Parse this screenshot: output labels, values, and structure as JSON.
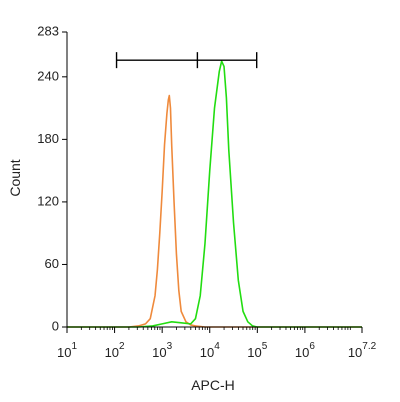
{
  "chart_data": {
    "type": "line",
    "xlabel": "APC-H",
    "ylabel": "Count",
    "x_scale": "log",
    "xlim": [
      10,
      15848932
    ],
    "ylim": [
      0,
      283
    ],
    "x_ticks": [
      {
        "base": "10",
        "exp": "1",
        "value": 10
      },
      {
        "base": "10",
        "exp": "2",
        "value": 100
      },
      {
        "base": "10",
        "exp": "3",
        "value": 1000
      },
      {
        "base": "10",
        "exp": "4",
        "value": 10000
      },
      {
        "base": "10",
        "exp": "5",
        "value": 100000
      },
      {
        "base": "10",
        "exp": "6",
        "value": 1000000
      },
      {
        "base": "10",
        "exp": "7.2",
        "value": 15848932
      }
    ],
    "y_ticks": [
      "0",
      "60",
      "120",
      "180",
      "240",
      "283"
    ],
    "y_tick_values": [
      0,
      60,
      120,
      180,
      240,
      283
    ],
    "series": [
      {
        "color": "#ef8a3c",
        "points": [
          [
            10,
            0
          ],
          [
            100,
            0
          ],
          [
            200,
            0
          ],
          [
            316,
            1
          ],
          [
            447,
            3
          ],
          [
            562,
            8
          ],
          [
            708,
            30
          ],
          [
            794,
            55
          ],
          [
            891,
            90
          ],
          [
            1000,
            130
          ],
          [
            1122,
            175
          ],
          [
            1259,
            205
          ],
          [
            1349,
            218
          ],
          [
            1413,
            222
          ],
          [
            1496,
            210
          ],
          [
            1585,
            175
          ],
          [
            1778,
            120
          ],
          [
            1995,
            70
          ],
          [
            2239,
            35
          ],
          [
            2512,
            15
          ],
          [
            3162,
            5
          ],
          [
            3981,
            2
          ],
          [
            5012,
            1
          ],
          [
            7943,
            0
          ],
          [
            100000,
            0
          ],
          [
            15848932,
            0
          ]
        ]
      },
      {
        "color": "#22dd11",
        "points": [
          [
            10,
            0
          ],
          [
            316,
            0
          ],
          [
            631,
            1
          ],
          [
            1000,
            3
          ],
          [
            1585,
            5
          ],
          [
            2512,
            4
          ],
          [
            3981,
            3
          ],
          [
            5012,
            8
          ],
          [
            6310,
            30
          ],
          [
            7943,
            80
          ],
          [
            10000,
            150
          ],
          [
            12589,
            210
          ],
          [
            15849,
            245
          ],
          [
            17783,
            255
          ],
          [
            19953,
            250
          ],
          [
            22387,
            220
          ],
          [
            25119,
            170
          ],
          [
            31623,
            100
          ],
          [
            39811,
            45
          ],
          [
            50119,
            15
          ],
          [
            63096,
            5
          ],
          [
            79433,
            1
          ],
          [
            100000,
            0
          ],
          [
            15848932,
            0
          ]
        ]
      }
    ],
    "gate": {
      "x_start": 110,
      "x_mid": 5500,
      "x_end": 97000,
      "y": 256
    }
  }
}
